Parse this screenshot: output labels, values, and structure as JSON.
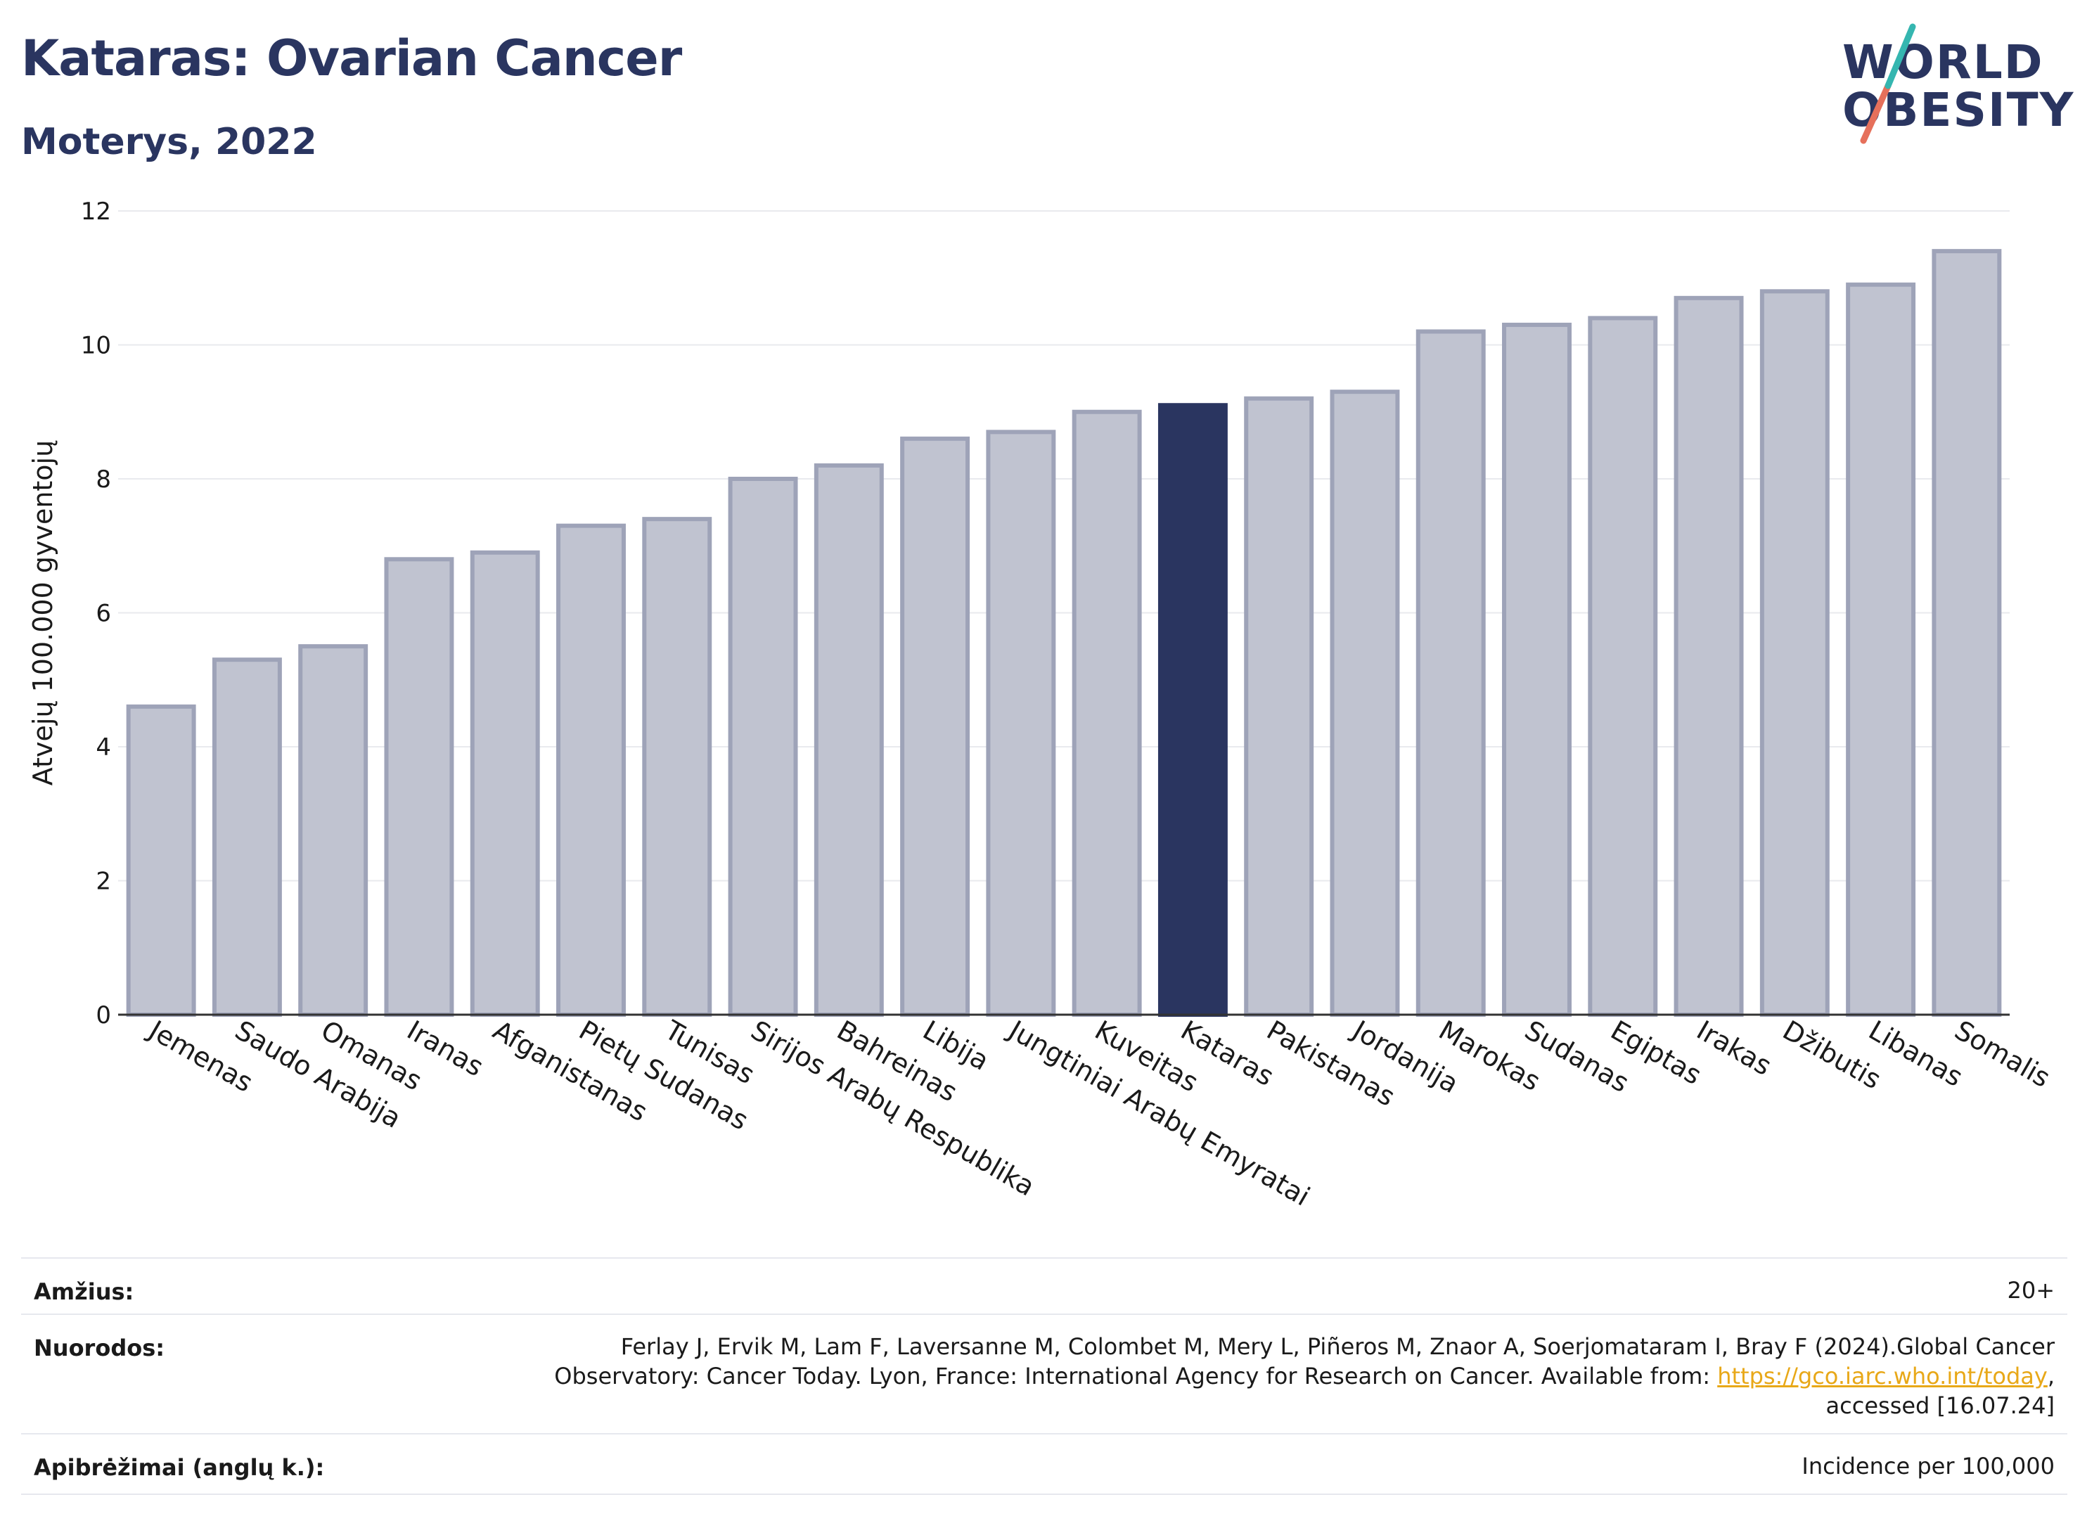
{
  "header": {
    "title": "Kataras: Ovarian Cancer",
    "subtitle": "Moterys, 2022"
  },
  "logo": {
    "line1": "WORLD",
    "line2": "OBESITY",
    "accent_colors": [
      "#35b6b0",
      "#e6705b"
    ]
  },
  "chart_data": {
    "type": "bar",
    "ylabel": "Atvejų 100.000 gyventojų",
    "xlabel": "",
    "ylim": [
      0,
      12
    ],
    "yticks": [
      0,
      2,
      4,
      6,
      8,
      10,
      12
    ],
    "grid": true,
    "categories": [
      "Jemenas",
      "Saudo Arabija",
      "Omanas",
      "Iranas",
      "Afganistanas",
      "Pietų Sudanas",
      "Tunisas",
      "Sirijos Arabų Respublika",
      "Bahreinas",
      "Libija",
      "Jungtiniai Arabų Emyratai",
      "Kuveitas",
      "Kataras",
      "Pakistanas",
      "Jordanija",
      "Marokas",
      "Sudanas",
      "Egiptas",
      "Irakas",
      "Džibutis",
      "Libanas",
      "Somalis"
    ],
    "values": [
      4.6,
      5.3,
      5.5,
      6.8,
      6.9,
      7.3,
      7.4,
      8.0,
      8.2,
      8.6,
      8.7,
      9.0,
      9.1,
      9.2,
      9.3,
      10.2,
      10.3,
      10.4,
      10.7,
      10.8,
      10.9,
      11.4
    ],
    "highlight": "Kataras",
    "colors": {
      "bar": "#c0c3d0",
      "bar_border": "#9ea3b8",
      "highlight": "#2a3560"
    }
  },
  "info": {
    "age_label": "Amžius:",
    "age_value": "20+",
    "refs_label": "Nuorodos:",
    "refs_line1": "Ferlay J, Ervik M, Lam F, Laversanne M, Colombet M, Mery L, Piñeros M, Znaor A, Soerjomataram I, Bray F (2024).Global Cancer",
    "refs_line2_prefix": "Observatory: Cancer Today. Lyon, France: International Agency for Research on Cancer. Available from: ",
    "refs_link": "https://gco.iarc.who.int/today",
    "refs_line2_suffix": ",",
    "refs_line3": "accessed [16.07.24]",
    "defs_label": "Apibrėžimai (anglų k.):",
    "defs_value": "Incidence per 100,000"
  }
}
